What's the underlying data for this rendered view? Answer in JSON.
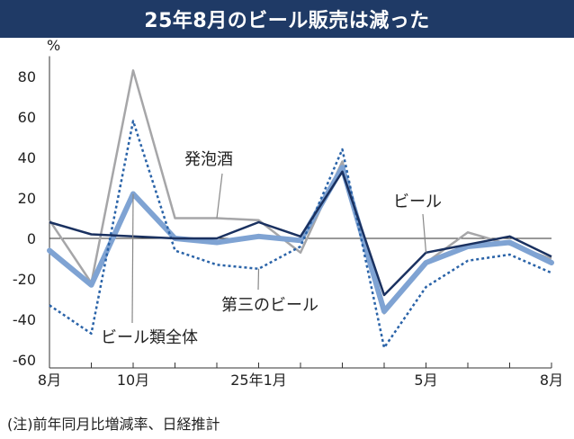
{
  "title": "25年8月のビール販売は減った",
  "footnote": "(注)前年同月比増減率、日経推計",
  "chart_data": {
    "type": "line",
    "unit_label": "%",
    "ylim": [
      -65,
      93
    ],
    "yticks": [
      80,
      60,
      40,
      20,
      0,
      -20,
      -40,
      -60
    ],
    "x_count": 13,
    "xtick_labels": [
      {
        "index": 0,
        "label": "8月"
      },
      {
        "index": 2,
        "label": "10月"
      },
      {
        "index": 5,
        "label": "25年1月"
      },
      {
        "index": 9,
        "label": "5月"
      },
      {
        "index": 12,
        "label": "8月"
      }
    ],
    "series": [
      {
        "name": "発泡酒",
        "color": "#a6a6a8",
        "style": "solid",
        "values": [
          9,
          -22,
          83,
          10,
          10,
          9,
          -7,
          38,
          -37,
          -12,
          3,
          -3,
          -10
        ]
      },
      {
        "name": "ビール類全体",
        "color": "#7fa3d3",
        "style": "solid-thick",
        "values": [
          -6,
          -23,
          22,
          0,
          -2,
          1,
          -1,
          35,
          -36,
          -12,
          -4,
          -2,
          -12
        ]
      },
      {
        "name": "第三のビール",
        "color": "#2a63a8",
        "style": "dotted",
        "values": [
          -33,
          -47,
          58,
          -6,
          -13,
          -15,
          -4,
          44,
          -54,
          -24,
          -11,
          -8,
          -17
        ]
      },
      {
        "name": "ビール",
        "color": "#1a3160",
        "style": "solid",
        "values": [
          8,
          2,
          1,
          0,
          0,
          8,
          1,
          33,
          -28,
          -7,
          -3,
          1,
          -9
        ]
      }
    ],
    "annotations": [
      {
        "text": "発泡酒",
        "series": "発泡酒",
        "point_index": 4
      },
      {
        "text": "ビール",
        "series": "ビール",
        "point_index": 9
      },
      {
        "text": "第三のビール",
        "series": "第三のビール",
        "point_index": 5
      },
      {
        "text": "ビール類全体",
        "series": "ビール類全体",
        "point_index": 2
      }
    ],
    "grid": false
  }
}
